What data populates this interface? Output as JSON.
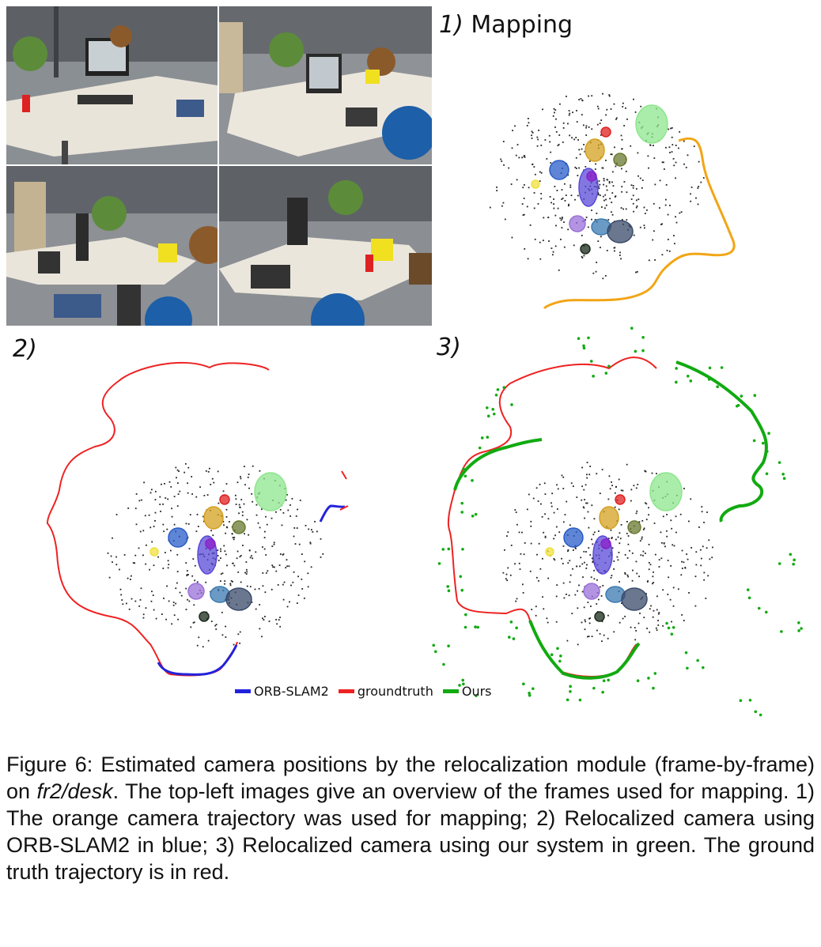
{
  "colors": {
    "mapping_trajectory": "#f2a516",
    "groundtruth": "#ee2222",
    "orbslam2": "#2222dd",
    "ours": "#11aa11",
    "landmarks": "#222222"
  },
  "panels": {
    "mapping": {
      "number": "1)",
      "title": "Mapping"
    },
    "orbslam": {
      "number": "2)"
    },
    "ours": {
      "number": "3)"
    }
  },
  "legend": [
    {
      "label": "ORB-SLAM2",
      "color": "#2222dd"
    },
    {
      "label": "groundtruth",
      "color": "#ee2222"
    },
    {
      "label": "Ours",
      "color": "#11aa11"
    }
  ],
  "photos": [
    {
      "name": "frame-1"
    },
    {
      "name": "frame-2"
    },
    {
      "name": "frame-3"
    },
    {
      "name": "frame-4"
    }
  ],
  "caption": {
    "p1": "Figure 6: Estimated camera positions by the relocalization module (frame-by-frame) on ",
    "dataset": "fr2/desk",
    "p2": ". The top-left images give an overview of the frames used for mapping. 1) The orange camera trajectory was used for mapping; 2) Relocalized camera using ORB-SLAM2 in blue; 3) Relocalized camera using our system in green. The ground truth trajectory is in red."
  }
}
